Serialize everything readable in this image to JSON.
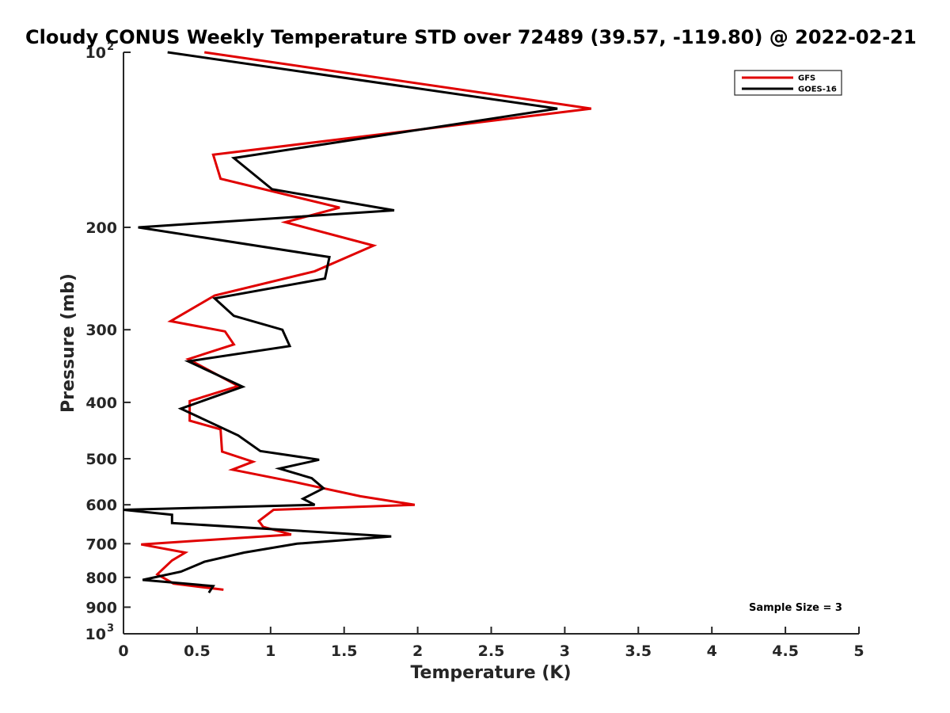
{
  "chart_data": {
    "type": "line",
    "title": "Cloudy CONUS Weekly Temperature STD over 72489 (39.57, -119.80) @ 2022-02-21",
    "xlabel": "Temperature (K)",
    "ylabel": "Pressure (mb)",
    "xlim": [
      0,
      5
    ],
    "ylim": [
      100,
      1000
    ],
    "y_scale": "log",
    "y_reversed": true,
    "x_ticks": [
      "0",
      "0.5",
      "1",
      "1.5",
      "2",
      "2.5",
      "3",
      "3.5",
      "4",
      "4.5",
      "5"
    ],
    "y_ticks": [
      {
        "value": 100,
        "label": "10",
        "sup": "2"
      },
      {
        "value": 200,
        "label": "200",
        "sup": ""
      },
      {
        "value": 300,
        "label": "300",
        "sup": ""
      },
      {
        "value": 400,
        "label": "400",
        "sup": ""
      },
      {
        "value": 500,
        "label": "500",
        "sup": ""
      },
      {
        "value": 600,
        "label": "600",
        "sup": ""
      },
      {
        "value": 700,
        "label": "700",
        "sup": ""
      },
      {
        "value": 800,
        "label": "800",
        "sup": ""
      },
      {
        "value": 900,
        "label": "900",
        "sup": ""
      },
      {
        "value": 1000,
        "label": "10",
        "sup": "3"
      }
    ],
    "grid": false,
    "legend_position": "top-right",
    "series": [
      {
        "name": "GFS",
        "color": "#e00000",
        "points": [
          [
            0.55,
            100
          ],
          [
            3.18,
            125
          ],
          [
            0.61,
            150
          ],
          [
            0.66,
            165
          ],
          [
            1.47,
            185
          ],
          [
            1.1,
            196
          ],
          [
            1.7,
            215
          ],
          [
            1.3,
            238
          ],
          [
            0.62,
            262
          ],
          [
            0.32,
            290
          ],
          [
            0.69,
            302
          ],
          [
            0.75,
            318
          ],
          [
            0.44,
            337
          ],
          [
            0.78,
            375
          ],
          [
            0.45,
            398
          ],
          [
            0.45,
            430
          ],
          [
            0.66,
            445
          ],
          [
            0.67,
            486
          ],
          [
            0.88,
            506
          ],
          [
            0.74,
            522
          ],
          [
            1.16,
            548
          ],
          [
            1.61,
            580
          ],
          [
            1.98,
            600
          ],
          [
            1.02,
            612
          ],
          [
            0.92,
            640
          ],
          [
            0.95,
            655
          ],
          [
            1.14,
            675
          ],
          [
            0.12,
            702
          ],
          [
            0.42,
            725
          ],
          [
            0.33,
            748
          ],
          [
            0.23,
            790
          ],
          [
            0.34,
            820
          ],
          [
            0.68,
            840
          ]
        ]
      },
      {
        "name": "GOES-16",
        "color": "#000000",
        "points": [
          [
            0.3,
            100
          ],
          [
            2.95,
            125
          ],
          [
            0.75,
            152
          ],
          [
            1.01,
            172
          ],
          [
            1.84,
            187
          ],
          [
            0.1,
            200
          ],
          [
            1.4,
            225
          ],
          [
            1.37,
            245
          ],
          [
            0.62,
            265
          ],
          [
            0.75,
            284
          ],
          [
            1.08,
            300
          ],
          [
            1.13,
            320
          ],
          [
            0.44,
            340
          ],
          [
            0.81,
            376
          ],
          [
            0.39,
            410
          ],
          [
            0.78,
            456
          ],
          [
            0.93,
            485
          ],
          [
            1.33,
            502
          ],
          [
            1.06,
            520
          ],
          [
            1.28,
            540
          ],
          [
            1.36,
            562
          ],
          [
            1.22,
            586
          ],
          [
            1.3,
            600
          ],
          [
            0.0,
            612
          ],
          [
            0.33,
            624
          ],
          [
            0.33,
            645
          ],
          [
            1.82,
            680
          ],
          [
            1.18,
            700
          ],
          [
            0.82,
            725
          ],
          [
            0.55,
            752
          ],
          [
            0.39,
            782
          ],
          [
            0.13,
            808
          ],
          [
            0.61,
            828
          ],
          [
            0.58,
            850
          ]
        ]
      }
    ],
    "annotations": [
      "Sample Size = 3"
    ]
  }
}
